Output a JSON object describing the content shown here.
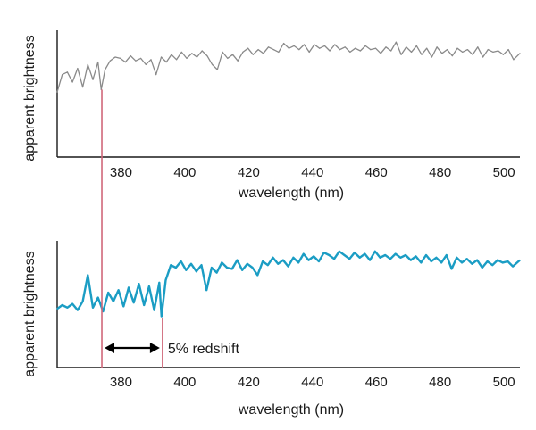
{
  "chart_data": [
    {
      "type": "line",
      "xlabel": "wavelength (nm)",
      "ylabel": "apparent brightness",
      "xlim": [
        360,
        505
      ],
      "ylim": [
        0,
        1
      ],
      "x_ticks": [
        380,
        400,
        420,
        440,
        460,
        480,
        500
      ],
      "series": [
        {
          "color": "#8a8a8a",
          "x": [
            360,
            361.6,
            363.2,
            364.8,
            366.4,
            368,
            369.6,
            371.2,
            372.8,
            373.8,
            375,
            376.6,
            378.2,
            379.8,
            381.4,
            383,
            384.6,
            386.2,
            387.8,
            389.4,
            391,
            392.6,
            394.2,
            395.8,
            397.4,
            399,
            400.6,
            402.2,
            403.8,
            405.4,
            407,
            408.6,
            410.2,
            411.8,
            413.4,
            415,
            416.6,
            418.2,
            419.8,
            421.4,
            423,
            424.6,
            426.2,
            427.8,
            429.4,
            431,
            432.6,
            434.2,
            435.8,
            437.4,
            439,
            440.6,
            442.2,
            443.8,
            445.4,
            447,
            448.6,
            450.2,
            451.8,
            453.4,
            455,
            456.6,
            458.2,
            459.8,
            461.4,
            463,
            464.6,
            466.2,
            467.8,
            469.4,
            471,
            472.6,
            474.2,
            475.8,
            477.4,
            479,
            480.6,
            482.2,
            483.8,
            485.4,
            487,
            488.6,
            490.2,
            491.8,
            493.4,
            495,
            496.6,
            498.2,
            499.8,
            501.4,
            503,
            505
          ],
          "y": [
            0.52,
            0.66,
            0.68,
            0.6,
            0.71,
            0.56,
            0.74,
            0.62,
            0.76,
            0.54,
            0.7,
            0.77,
            0.8,
            0.79,
            0.76,
            0.81,
            0.77,
            0.79,
            0.74,
            0.78,
            0.66,
            0.8,
            0.76,
            0.82,
            0.78,
            0.84,
            0.79,
            0.83,
            0.8,
            0.85,
            0.81,
            0.74,
            0.7,
            0.84,
            0.79,
            0.82,
            0.77,
            0.84,
            0.87,
            0.82,
            0.86,
            0.83,
            0.88,
            0.86,
            0.84,
            0.91,
            0.87,
            0.89,
            0.86,
            0.9,
            0.84,
            0.9,
            0.87,
            0.89,
            0.85,
            0.9,
            0.86,
            0.88,
            0.84,
            0.87,
            0.85,
            0.89,
            0.86,
            0.87,
            0.83,
            0.88,
            0.85,
            0.92,
            0.82,
            0.88,
            0.84,
            0.89,
            0.82,
            0.87,
            0.8,
            0.88,
            0.83,
            0.86,
            0.81,
            0.87,
            0.84,
            0.86,
            0.82,
            0.88,
            0.8,
            0.86,
            0.84,
            0.85,
            0.82,
            0.86,
            0.78,
            0.83
          ]
        }
      ]
    },
    {
      "type": "line",
      "xlabel": "wavelength (nm)",
      "ylabel": "apparent brightness",
      "xlim": [
        360,
        505
      ],
      "ylim": [
        0,
        1
      ],
      "x_ticks": [
        380,
        400,
        420,
        440,
        460,
        480,
        500
      ],
      "series": [
        {
          "color": "#1b9dc4",
          "x": [
            360,
            361.6,
            363.2,
            364.8,
            366.4,
            368,
            369.6,
            371.2,
            372.8,
            374.4,
            376,
            377.6,
            379.2,
            380.8,
            382.4,
            384,
            385.6,
            387.2,
            388.8,
            390.4,
            392,
            392.7,
            394,
            395.6,
            397.2,
            398.8,
            400.4,
            402,
            403.6,
            405.2,
            406.8,
            408.4,
            410,
            411.6,
            413.2,
            414.8,
            416.4,
            418,
            419.6,
            421.2,
            422.8,
            424.4,
            426,
            427.6,
            429.2,
            430.8,
            432.4,
            434,
            435.6,
            437.2,
            438.8,
            440.4,
            442,
            443.6,
            445.2,
            446.8,
            448.4,
            450,
            451.6,
            453.2,
            454.8,
            456.4,
            458,
            459.6,
            461.2,
            462.8,
            464.4,
            466,
            467.6,
            469.2,
            470.8,
            472.4,
            474,
            475.6,
            477.2,
            478.8,
            480.4,
            482,
            483.6,
            485.2,
            486.8,
            488.4,
            490,
            491.6,
            493.2,
            494.8,
            496.4,
            498,
            499.6,
            501.2,
            502.8,
            505
          ],
          "y": [
            0.47,
            0.5,
            0.48,
            0.51,
            0.46,
            0.53,
            0.74,
            0.48,
            0.56,
            0.45,
            0.6,
            0.53,
            0.62,
            0.49,
            0.64,
            0.52,
            0.67,
            0.5,
            0.65,
            0.46,
            0.68,
            0.41,
            0.7,
            0.82,
            0.8,
            0.85,
            0.78,
            0.83,
            0.77,
            0.82,
            0.62,
            0.8,
            0.76,
            0.84,
            0.8,
            0.79,
            0.86,
            0.78,
            0.83,
            0.8,
            0.74,
            0.85,
            0.82,
            0.88,
            0.83,
            0.86,
            0.81,
            0.88,
            0.84,
            0.91,
            0.86,
            0.89,
            0.85,
            0.92,
            0.9,
            0.87,
            0.93,
            0.9,
            0.87,
            0.92,
            0.88,
            0.91,
            0.86,
            0.93,
            0.88,
            0.9,
            0.87,
            0.91,
            0.88,
            0.9,
            0.86,
            0.89,
            0.84,
            0.9,
            0.85,
            0.88,
            0.84,
            0.9,
            0.79,
            0.88,
            0.84,
            0.87,
            0.83,
            0.86,
            0.8,
            0.85,
            0.82,
            0.86,
            0.84,
            0.85,
            0.81,
            0.86
          ]
        }
      ],
      "annotations": [
        {
          "text": "5% redshift",
          "type": "double-arrow",
          "from": 374,
          "to": 393
        }
      ]
    }
  ],
  "markers": [
    {
      "color": "#d0687a",
      "x": 374,
      "from_y": 0.54,
      "to_panel": 1
    },
    {
      "color": "#d0687a",
      "x": 393
    }
  ]
}
